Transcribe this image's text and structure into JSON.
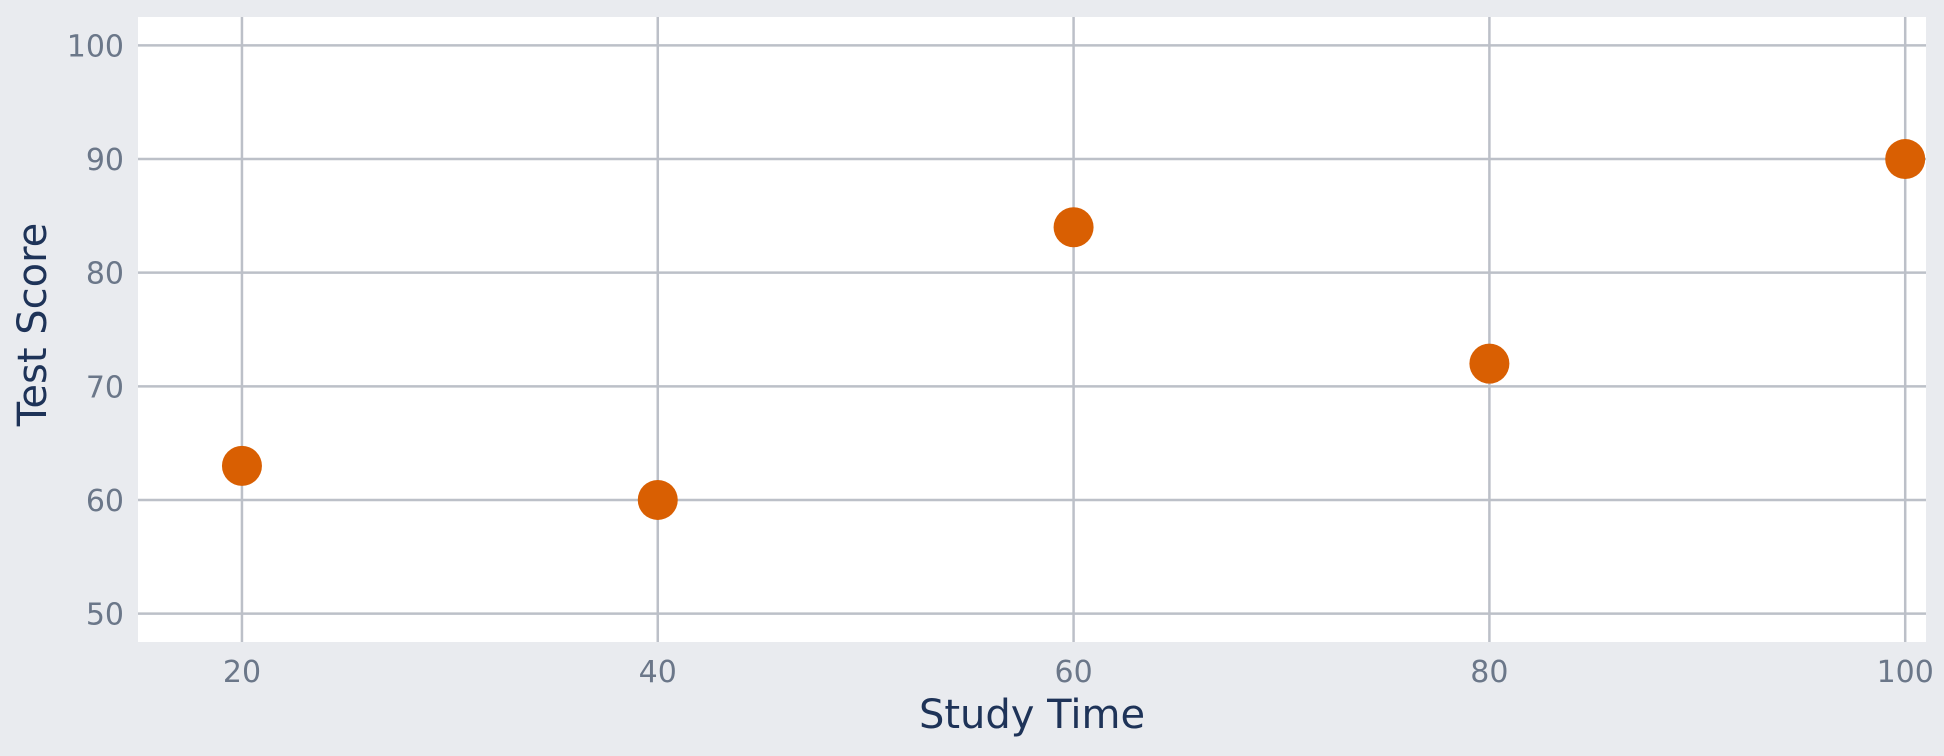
{
  "chart_data": {
    "type": "scatter",
    "title": "",
    "xlabel": "Study Time",
    "ylabel": "Test Score",
    "xlim": [
      15,
      101
    ],
    "ylim": [
      47.5,
      102.5
    ],
    "xticks": [
      20,
      40,
      60,
      80,
      100
    ],
    "yticks": [
      50,
      60,
      70,
      80,
      90,
      100
    ],
    "grid": true,
    "series": [
      {
        "color": "#d95f02",
        "points": [
          {
            "x": 20,
            "y": 63
          },
          {
            "x": 40,
            "y": 60
          },
          {
            "x": 60,
            "y": 84
          },
          {
            "x": 80,
            "y": 72
          },
          {
            "x": 100,
            "y": 90
          }
        ]
      }
    ]
  },
  "colors": {
    "page_background": "#e9ebef",
    "plot_background": "#ffffff",
    "grid": "#bcc0c8",
    "tick_text": "#6b7789",
    "axis_title": "#1e3358"
  }
}
